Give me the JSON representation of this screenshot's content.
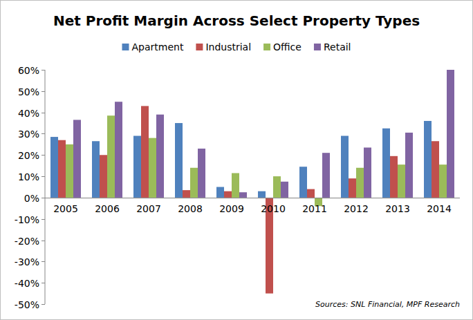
{
  "chart_data": {
    "type": "bar",
    "title": "Net Profit Margin Across Select Property Types",
    "categories": [
      "2005",
      "2006",
      "2007",
      "2008",
      "2009",
      "2010",
      "2011",
      "2012",
      "2013",
      "2014"
    ],
    "series": [
      {
        "name": "Apartment",
        "color": "#4f81bd",
        "values": [
          28.5,
          26.5,
          29,
          35,
          5,
          3,
          14.5,
          29,
          32.5,
          36
        ]
      },
      {
        "name": "Industrial",
        "color": "#c0504d",
        "values": [
          27,
          20,
          43,
          3.5,
          3,
          -45,
          4,
          9,
          19.5,
          26.5
        ]
      },
      {
        "name": "Office",
        "color": "#9bbb59",
        "values": [
          25,
          38.5,
          28,
          14,
          11.5,
          10,
          -4,
          14,
          15.5,
          15.5
        ]
      },
      {
        "name": "Retail",
        "color": "#8064a2",
        "values": [
          36.5,
          45,
          39,
          23,
          2.5,
          7.5,
          21,
          23.5,
          30.5,
          60
        ]
      }
    ],
    "ylim": [
      -50,
      60
    ],
    "yticks": [
      {
        "value": -50,
        "label": "-50%"
      },
      {
        "value": -40,
        "label": "-40%"
      },
      {
        "value": -30,
        "label": "-30%"
      },
      {
        "value": -20,
        "label": "-20%"
      },
      {
        "value": -10,
        "label": "-10%"
      },
      {
        "value": 0,
        "label": "0%"
      },
      {
        "value": 10,
        "label": "10%"
      },
      {
        "value": 20,
        "label": "20%"
      },
      {
        "value": 30,
        "label": "30%"
      },
      {
        "value": 40,
        "label": "40%"
      },
      {
        "value": 50,
        "label": "50%"
      },
      {
        "value": 60,
        "label": "60%"
      }
    ],
    "grid": false,
    "legend": "top",
    "source": "Sources: SNL Financial, MPF Research"
  }
}
